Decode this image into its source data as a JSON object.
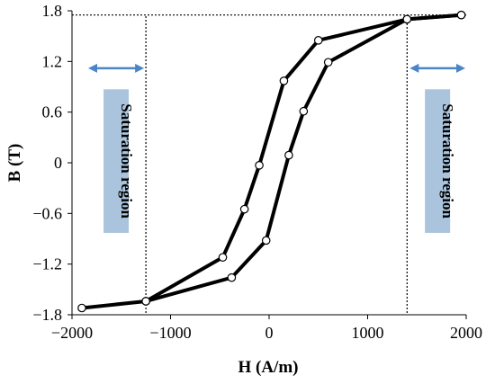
{
  "chart_data": {
    "type": "line",
    "xlabel": "H (A/m)",
    "ylabel": "B (T)",
    "xlim": [
      -2000,
      2000
    ],
    "ylim": [
      -1.8,
      1.8
    ],
    "x_ticks": [
      "−2000",
      "−1000",
      "0",
      "1000",
      "2000"
    ],
    "y_ticks": [
      "1.8",
      "1.2",
      "0.6",
      "0",
      "−0.6",
      "−1.2",
      "−1.8"
    ],
    "grid": false,
    "series": [
      {
        "name": "",
        "x": [
          -1900,
          -1250,
          -470,
          -250,
          -100,
          150,
          500,
          1400,
          1950
        ],
        "y": [
          -1.72,
          -1.64,
          -1.12,
          -0.55,
          -0.03,
          0.97,
          1.45,
          1.7,
          1.75
        ]
      },
      {
        "name": "",
        "x": [
          1950,
          1400,
          600,
          350,
          200,
          -30,
          -380,
          -1250
        ],
        "y": [
          1.75,
          1.7,
          1.19,
          0.61,
          0.09,
          -0.92,
          -1.36,
          -1.64
        ]
      }
    ],
    "reference_lines": {
      "x_values": [
        -1250,
        1400
      ],
      "y_value": 1.75
    },
    "annotations": [
      {
        "text": "Saturation region",
        "side": "left"
      },
      {
        "text": "Saturation region",
        "side": "right"
      }
    ],
    "colors": {
      "curve": "#000000",
      "arrow": "#4a86c6",
      "label_box": "#a9c4dc"
    }
  }
}
